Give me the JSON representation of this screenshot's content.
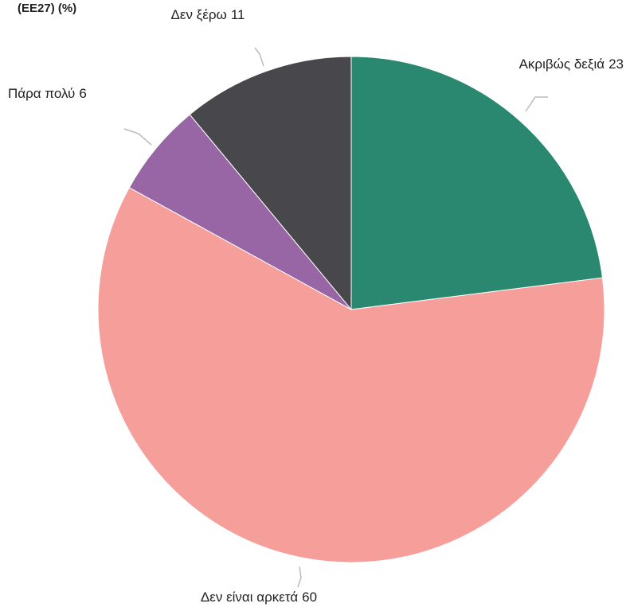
{
  "chart_data": {
    "type": "pie",
    "title": "(EE27) (%)",
    "categories": [
      "Ακριβώς δεξιά",
      "Δεν είναι αρκετά",
      "Πάρα πολύ",
      "Δεν ξέρω"
    ],
    "values": [
      23,
      60,
      6,
      11
    ],
    "colors": [
      "#2a8870",
      "#f59e9a",
      "#9866a5",
      "#48474b"
    ]
  }
}
